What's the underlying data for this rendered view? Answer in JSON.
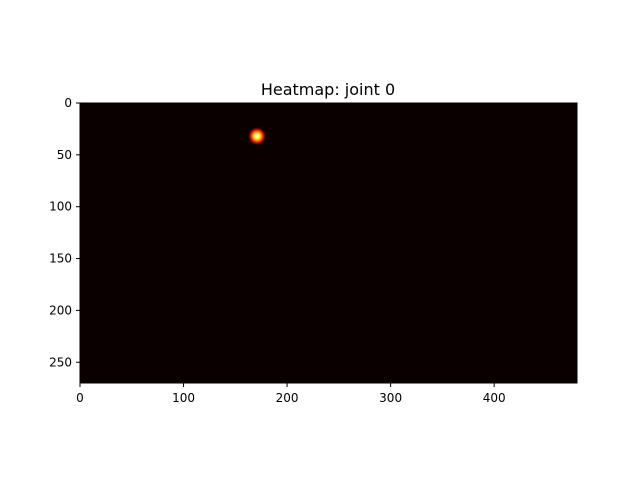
{
  "chart_data": {
    "type": "heatmap",
    "title": "Heatmap: joint 0",
    "xlabel": "",
    "ylabel": "",
    "width": 480,
    "height": 270,
    "xlim": [
      0,
      480
    ],
    "ylim": [
      270,
      0
    ],
    "x_ticks": [
      0,
      100,
      200,
      300,
      400
    ],
    "y_ticks": [
      0,
      50,
      100,
      150,
      200,
      250
    ],
    "colormap": "hot",
    "background_color": "#0b0000",
    "peak": {
      "x": 171,
      "y": 32,
      "sigma": 3
    },
    "grid": false
  }
}
